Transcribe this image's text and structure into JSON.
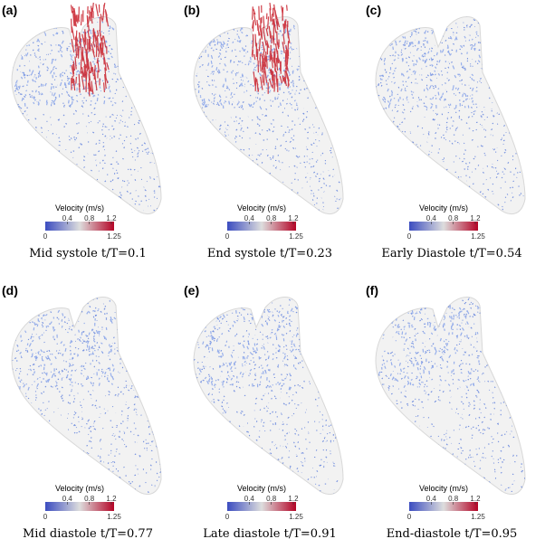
{
  "panels": [
    {
      "label": "(a)",
      "caption": "Mid systole t/T=0.1",
      "colorbar": {
        "title": "Velocity (m/s)",
        "ticks": [
          "0.4",
          "0.8",
          "1.2"
        ],
        "min": "0",
        "max": "1.25"
      }
    },
    {
      "label": "(b)",
      "caption": "End systole t/T=0.23",
      "colorbar": {
        "title": "Velocity (m/s)",
        "ticks": [
          "0.4",
          "0.8",
          "1.2"
        ],
        "min": "0",
        "max": "1.25"
      }
    },
    {
      "label": "(c)",
      "caption": "Early Diastole t/T=0.54",
      "colorbar": {
        "title": "Velocity (m/s)",
        "ticks": [
          "0.4",
          "0.8",
          "1.2"
        ],
        "min": "0",
        "max": "1.25"
      }
    },
    {
      "label": "(d)",
      "caption": "Mid diastole t/T=0.77",
      "colorbar": {
        "title": "Velocity (m/s)",
        "ticks": [
          "0.4",
          "0.8",
          "1.2"
        ],
        "min": "0",
        "max": "1.25"
      }
    },
    {
      "label": "(e)",
      "caption": "Late diastole t/T=0.91",
      "colorbar": {
        "title": "Velocity (m/s)",
        "ticks": [
          "0.4",
          "0.8",
          "1.2"
        ],
        "min": "0",
        "max": "1.25"
      }
    },
    {
      "label": "(f)",
      "caption": "End-diastole t/T=0.95",
      "colorbar": {
        "title": "Velocity (m/s)",
        "ticks": [
          "0.4",
          "0.8",
          "1.2"
        ],
        "min": "0",
        "max": "1.25"
      }
    }
  ]
}
